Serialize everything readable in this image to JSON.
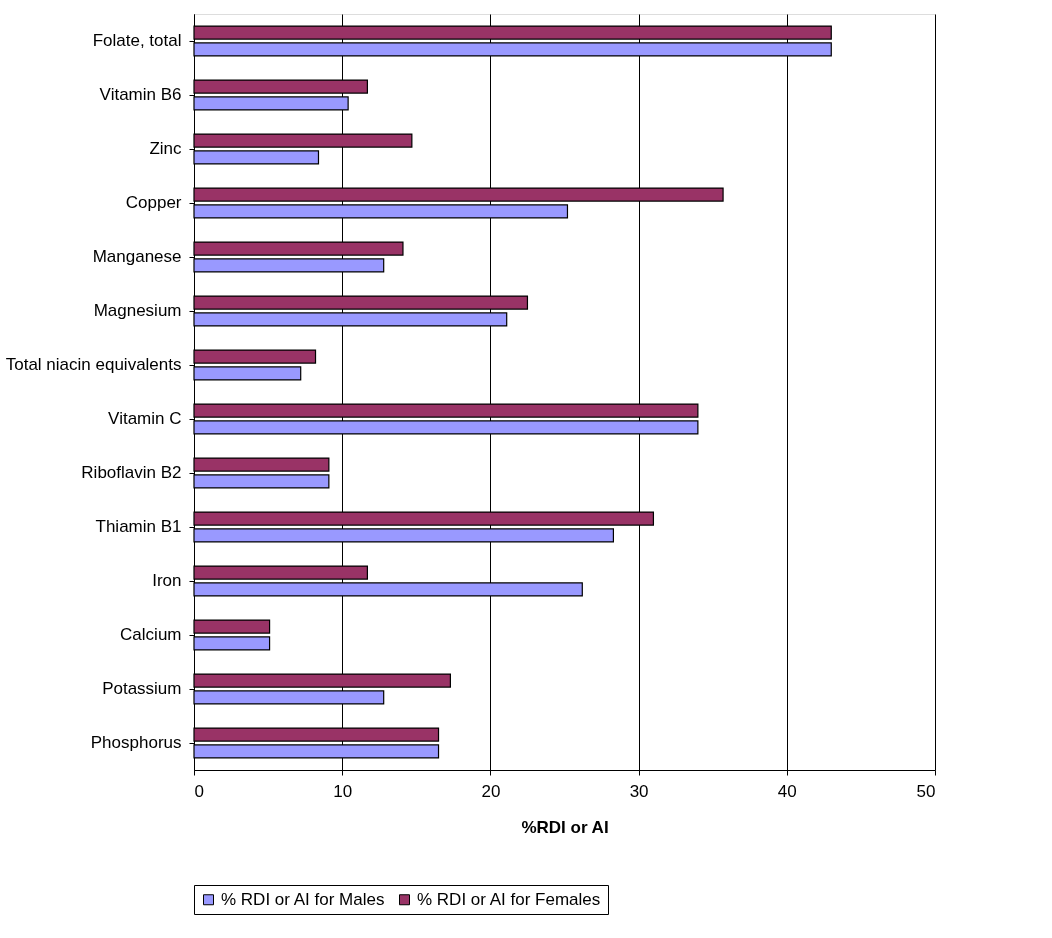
{
  "chart_data": {
    "type": "bar",
    "orientation": "horizontal",
    "xlabel": "%RDI or AI",
    "categories": [
      "Folate, total",
      "Vitamin B6",
      "Zinc",
      "Copper",
      "Manganese",
      "Magnesium",
      "Total niacin equivalents",
      "Vitamin C",
      "Riboflavin B2",
      "Thiamin B1",
      "Iron",
      "Calcium",
      "Potassium",
      "Phosphorus"
    ],
    "series": [
      {
        "name": "% RDI or AI for Males",
        "color": "#9999ff",
        "values": [
          43.0,
          10.4,
          8.4,
          25.2,
          12.8,
          21.1,
          7.2,
          34.0,
          9.1,
          28.3,
          26.2,
          5.1,
          12.8,
          16.5
        ]
      },
      {
        "name": "% RDI or AI for Females",
        "color": "#993366",
        "values": [
          43.0,
          11.7,
          14.7,
          35.7,
          14.1,
          22.5,
          8.2,
          34.0,
          9.1,
          31.0,
          11.7,
          5.1,
          17.3,
          16.5
        ]
      }
    ],
    "xlim": [
      0,
      50
    ],
    "xticks": [
      0,
      10,
      20,
      30,
      40,
      50
    ],
    "grid": "x",
    "legend": "bottom"
  }
}
